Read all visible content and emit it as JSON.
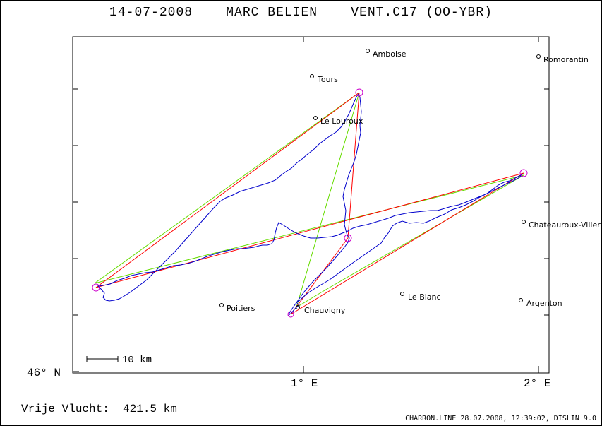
{
  "header": {
    "title": "14-07-2008    MARC BELIEN    VENT.C17 (OO-YBR)"
  },
  "axes": {
    "lat_label": "46° N",
    "lon_labels": [
      "1° E",
      "2° E"
    ]
  },
  "scale_bar": {
    "label": "10 km"
  },
  "towns": [
    {
      "name": "Amboise"
    },
    {
      "name": "Romorantin"
    },
    {
      "name": "Tours"
    },
    {
      "name": "Le Louroux"
    },
    {
      "name": "Chateauroux-Villers"
    },
    {
      "name": "Le Blanc"
    },
    {
      "name": "Argenton"
    },
    {
      "name": "Poitiers"
    },
    {
      "name": "Chauvigny"
    }
  ],
  "footer": {
    "free_flight": "Vrije Vlucht:  421.5 km",
    "generator": "CHARRON.LINE 28.07.2008, 12:39:02, DISLIN 9.0"
  },
  "colors": {
    "track": "#0000cc",
    "declared_course": "#ff0000",
    "optimized_course": "#66dd00",
    "turnpoint": "#cc00cc"
  }
}
